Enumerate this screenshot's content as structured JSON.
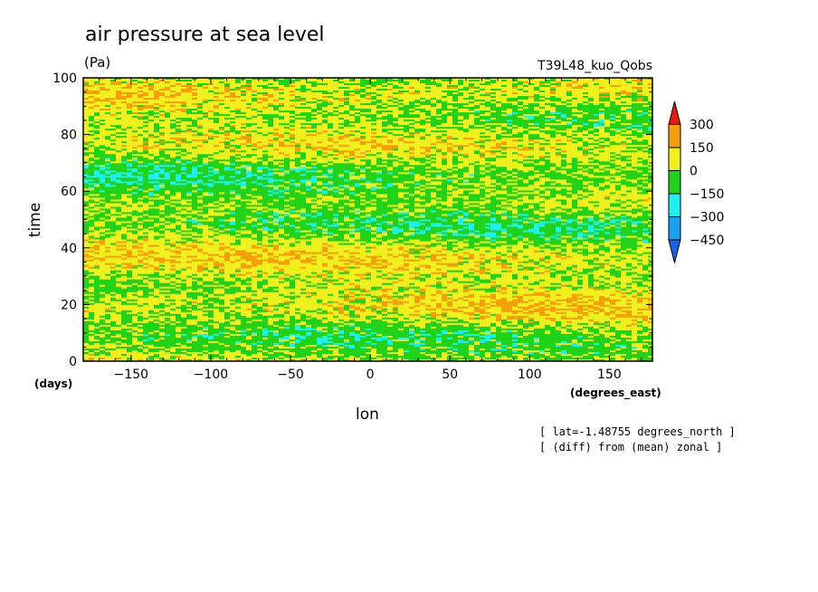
{
  "chart_data": {
    "type": "heatmap",
    "title": "air pressure at sea level",
    "units": "(Pa)",
    "experiment": "T39L48_kuo_Qobs",
    "xlabel": "lon",
    "xunits": "(degrees_east)",
    "ylabel": "time",
    "yunits": "(days)",
    "xlim": [
      -180,
      177
    ],
    "ylim": [
      0,
      100
    ],
    "xticks": [
      -150,
      -100,
      -50,
      0,
      50,
      100,
      150
    ],
    "yticks": [
      0,
      20,
      40,
      60,
      80,
      100
    ],
    "notes": [
      "[ lat=-1.48755 degrees_north ]",
      "[ (diff) from (mean) zonal ]"
    ],
    "colorbar": {
      "levels": [
        "300",
        "150",
        "0",
        "-150",
        "-300",
        "-450"
      ],
      "colors": [
        "#e8190d",
        "#f5a00a",
        "#f0f01e",
        "#21d219",
        "#1ef0f0",
        "#19a0f0",
        "#1964e6"
      ]
    }
  }
}
